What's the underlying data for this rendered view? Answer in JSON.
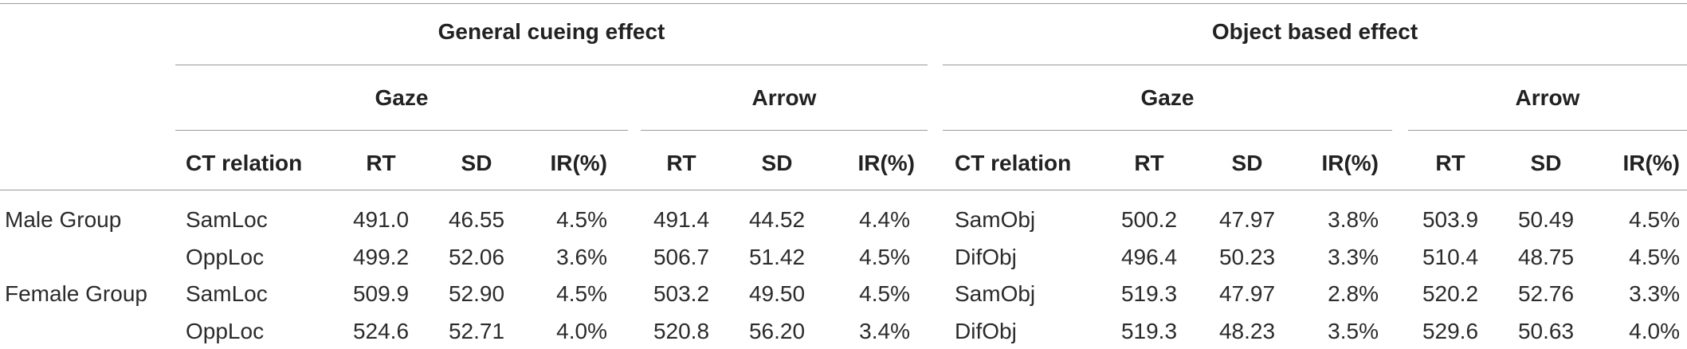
{
  "headers": {
    "general": "General cueing effect",
    "object": "Object based effect",
    "gaze": "Gaze",
    "arrow": "Arrow",
    "ct_relation": "CT relation",
    "rt": "RT",
    "sd": "SD",
    "ir": "IR(%)"
  },
  "rows": [
    {
      "group": "Male Group",
      "g_rel": "SamLoc",
      "g_gaze": [
        "491.0",
        "46.55",
        "4.5%"
      ],
      "g_arrow": [
        "491.4",
        "44.52",
        "4.4%"
      ],
      "o_rel": "SamObj",
      "o_gaze": [
        "500.2",
        "47.97",
        "3.8%"
      ],
      "o_arrow": [
        "503.9",
        "50.49",
        "4.5%"
      ]
    },
    {
      "group": "",
      "g_rel": "OppLoc",
      "g_gaze": [
        "499.2",
        "52.06",
        "3.6%"
      ],
      "g_arrow": [
        "506.7",
        "51.42",
        "4.5%"
      ],
      "o_rel": "DifObj",
      "o_gaze": [
        "496.4",
        "50.23",
        "3.3%"
      ],
      "o_arrow": [
        "510.4",
        "48.75",
        "4.5%"
      ]
    },
    {
      "group": "Female Group",
      "g_rel": "SamLoc",
      "g_gaze": [
        "509.9",
        "52.90",
        "4.5%"
      ],
      "g_arrow": [
        "503.2",
        "49.50",
        "4.5%"
      ],
      "o_rel": "SamObj",
      "o_gaze": [
        "519.3",
        "47.97",
        "2.8%"
      ],
      "o_arrow": [
        "520.2",
        "52.76",
        "3.3%"
      ]
    },
    {
      "group": "",
      "g_rel": "OppLoc",
      "g_gaze": [
        "524.6",
        "52.71",
        "4.0%"
      ],
      "g_arrow": [
        "520.8",
        "56.20",
        "3.4%"
      ],
      "o_rel": "DifObj",
      "o_gaze": [
        "519.3",
        "48.23",
        "3.5%"
      ],
      "o_arrow": [
        "529.6",
        "50.63",
        "4.0%"
      ]
    }
  ]
}
